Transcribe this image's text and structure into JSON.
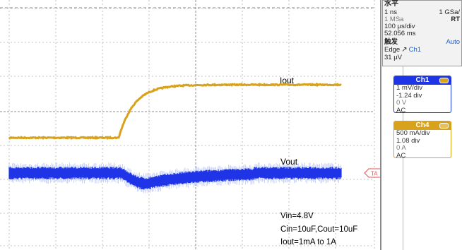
{
  "traces": {
    "iout_label": "Iout",
    "vout_label": "Vout",
    "trigger_marker": "TA"
  },
  "notes": {
    "vin": "Vin=4.8V",
    "caps": "Cin=10uF,Cout=10uF",
    "load_step": "Iout=1mA to 1A"
  },
  "timebase": {
    "title": "水平",
    "sample_time": "1 ns",
    "sample_rate": "1 GSa/",
    "record_length": "1 MSa",
    "mode": "RT",
    "time_per_div": "100 µs/div",
    "position": "52.056 ms"
  },
  "trigger": {
    "title": "触发",
    "mode": "Auto",
    "type": "Edge",
    "source": "Ch1",
    "level": "31 µV"
  },
  "channels": [
    {
      "name": "Ch1",
      "color": "#1e35e6",
      "scale": "1 mV/div",
      "position": "-1.24 div",
      "offset": "0 V",
      "coupling": "AC"
    },
    {
      "name": "Ch4",
      "color": "#d8a21c",
      "scale": "500 mA/div",
      "position": "1.08 div",
      "offset": "0 A",
      "coupling": "AC"
    }
  ],
  "colors": {
    "iout_trace": "#d8a21c",
    "vout_trace": "#1e35e6",
    "grid": "#b0b0b0"
  }
}
